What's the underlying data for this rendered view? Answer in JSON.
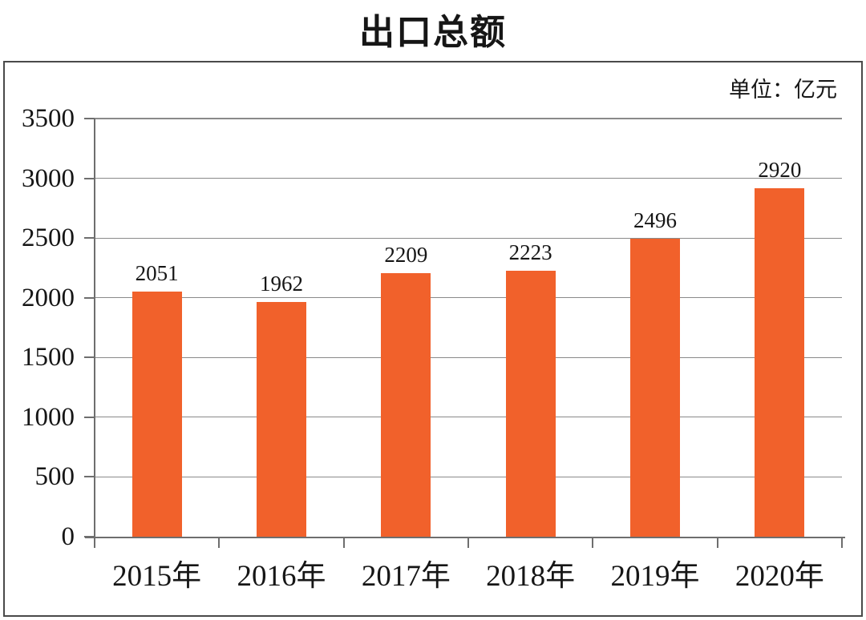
{
  "page": {
    "title": "出口总额",
    "unit_label": "单位：亿元"
  },
  "chart_data": {
    "type": "bar",
    "title": "出口总额",
    "unit": "亿元",
    "categories": [
      "2015年",
      "2016年",
      "2017年",
      "2018年",
      "2019年",
      "2020年"
    ],
    "values": [
      2051,
      1962,
      2209,
      2223,
      2496,
      2920
    ],
    "data_labels_shown": true,
    "xlabel": "",
    "ylabel": "",
    "ylim": [
      0,
      3500
    ],
    "yticks": [
      0,
      500,
      1000,
      1500,
      2000,
      2500,
      3000,
      3500
    ],
    "grid": "horizontal",
    "legend": "none",
    "colors": {
      "bar": "#F1612B",
      "gridline": "#8A8A8A",
      "axis": "#6E6E6E",
      "frame_border": "#4A4A4A",
      "text": "#161616"
    }
  }
}
